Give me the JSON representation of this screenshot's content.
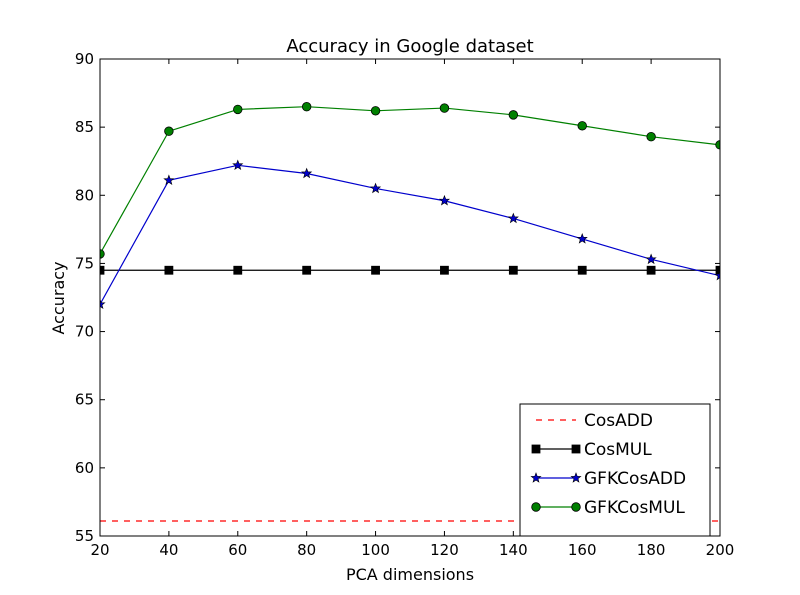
{
  "chart_data": {
    "type": "line",
    "title": "Accuracy in Google dataset",
    "xlabel": "PCA dimensions",
    "ylabel": "Accuracy",
    "xlim": [
      20,
      200
    ],
    "ylim": [
      55,
      90
    ],
    "xticks": [
      "20",
      "40",
      "60",
      "80",
      "100",
      "120",
      "140",
      "160",
      "180",
      "200"
    ],
    "yticks": [
      "55",
      "60",
      "65",
      "70",
      "75",
      "80",
      "85",
      "90"
    ],
    "x": [
      20,
      40,
      60,
      80,
      100,
      120,
      140,
      160,
      180,
      200
    ],
    "grid": false,
    "legend_position": "lower-right",
    "series": [
      {
        "name": "CosADD",
        "color": "#ff0000",
        "linestyle": "dashed",
        "marker": "none",
        "values": [
          56.1,
          56.1,
          56.1,
          56.1,
          56.1,
          56.1,
          56.1,
          56.1,
          56.1,
          56.1
        ]
      },
      {
        "name": "CosMUL",
        "color": "#000000",
        "linestyle": "solid",
        "marker": "square",
        "values": [
          74.5,
          74.5,
          74.5,
          74.5,
          74.5,
          74.5,
          74.5,
          74.5,
          74.5,
          74.5
        ]
      },
      {
        "name": "GFKCosADD",
        "color": "#0000cc",
        "linestyle": "solid",
        "marker": "star",
        "values": [
          72.0,
          81.1,
          82.2,
          81.6,
          80.5,
          79.6,
          78.3,
          76.8,
          75.3,
          74.1
        ]
      },
      {
        "name": "GFKCosMUL",
        "color": "#008000",
        "linestyle": "solid",
        "marker": "circle",
        "values": [
          75.7,
          84.7,
          86.3,
          86.5,
          86.2,
          86.4,
          85.9,
          85.1,
          84.3,
          83.7
        ]
      }
    ]
  }
}
